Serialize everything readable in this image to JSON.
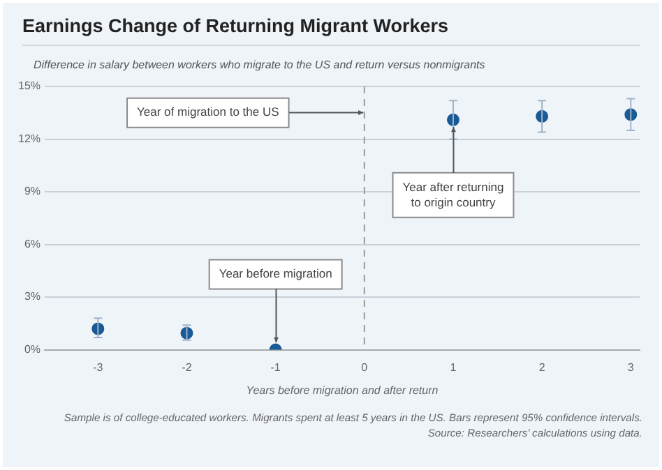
{
  "chart_data": {
    "type": "scatter",
    "title": "Earnings Change of Returning Migrant Workers",
    "ylabel": "Difference in salary between workers who migrate to the US and return versus nonmigrants",
    "xlabel": "Years before migration and after return",
    "x": [
      -3,
      -2,
      -1,
      1,
      2,
      3
    ],
    "series": [
      {
        "color": "#1a5a96",
        "values": [
          1.2,
          0.95,
          0,
          13.1,
          13.3,
          13.4
        ],
        "errors": [
          [
            0.7,
            1.8
          ],
          [
            0.55,
            1.4
          ],
          null,
          [
            12.0,
            14.2
          ],
          [
            12.4,
            14.2
          ],
          [
            12.5,
            14.3
          ]
        ]
      }
    ],
    "xlim": [
      -3.6,
      3.1
    ],
    "xticks": [
      -3,
      -2,
      -1,
      0,
      1,
      2,
      3
    ],
    "ylim": [
      0,
      15
    ],
    "yticks": [
      {
        "value": 0,
        "label": "0%"
      },
      {
        "value": 3,
        "label": "3%"
      },
      {
        "value": 6,
        "label": "6%"
      },
      {
        "value": 9,
        "label": "9%"
      },
      {
        "value": 12,
        "label": "12%"
      },
      {
        "value": 15,
        "label": "15%"
      }
    ],
    "grid": "y",
    "legend": false,
    "marker": "circle",
    "ref_lines": [
      {
        "axis": "x",
        "value": 0,
        "line_style": "dashed",
        "color": "#9a9a9a"
      }
    ],
    "annotations": [
      {
        "text": "Year of migration to the US",
        "x": 0,
        "y": 13.5
      },
      {
        "text": "Year before migration",
        "x": -1,
        "y": 0
      },
      {
        "text": "Year after returning to origin country",
        "x": 1,
        "y": 13.1
      },
      "Sample is of college-educated workers. Migrants spent at least 5 years in the US. Bars represent 95% confidence intervals.",
      "Source: Researchers’ calculations using data."
    ]
  }
}
